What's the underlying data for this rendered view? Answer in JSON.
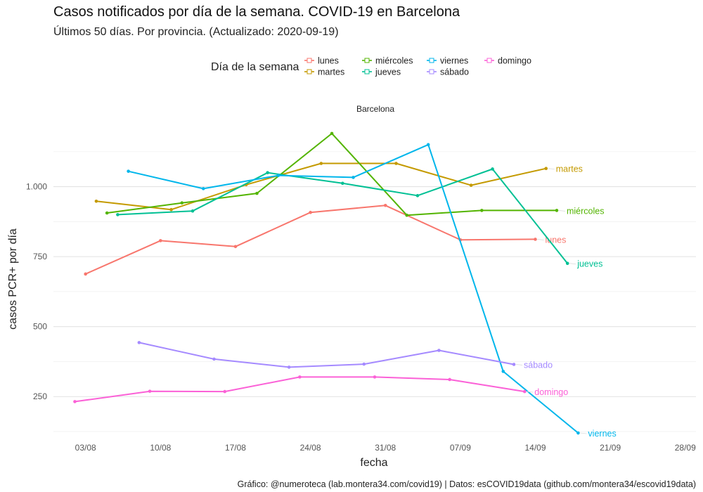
{
  "title": "Casos notificados por día de la semana. COVID-19 en Barcelona",
  "subtitle": "Últimos 50 días. Por provincia. (Actualizado: 2020-09-19)",
  "caption": "Gráfico: @numeroteca (lab.montera34.com/covid19) | Datos: esCOVID19data (github.com/montera34/escovid19data)",
  "chart_data": {
    "type": "line",
    "facet": "Barcelona",
    "xlabel": "fecha",
    "ylabel": "casos PCR+ por día",
    "legend_title": "Día de la semana",
    "legend_position": "top",
    "grid": true,
    "xlim": [
      "2020-07-31",
      "2020-09-29"
    ],
    "ylim": [
      110,
      1240
    ],
    "x_ticks": [
      {
        "date": "2020-08-03",
        "label": "03/08"
      },
      {
        "date": "2020-08-10",
        "label": "10/08"
      },
      {
        "date": "2020-08-17",
        "label": "17/08"
      },
      {
        "date": "2020-08-24",
        "label": "24/08"
      },
      {
        "date": "2020-08-31",
        "label": "31/08"
      },
      {
        "date": "2020-09-07",
        "label": "07/09"
      },
      {
        "date": "2020-09-14",
        "label": "14/09"
      },
      {
        "date": "2020-09-21",
        "label": "21/09"
      },
      {
        "date": "2020-09-28",
        "label": "28/09"
      }
    ],
    "y_ticks": [
      {
        "value": 250,
        "label": "250"
      },
      {
        "value": 500,
        "label": "500"
      },
      {
        "value": 750,
        "label": "750"
      },
      {
        "value": 1000,
        "label": "1.000"
      }
    ],
    "series": [
      {
        "name": "lunes",
        "color": "#F8766D",
        "dates": [
          "2020-08-03",
          "2020-08-10",
          "2020-08-17",
          "2020-08-24",
          "2020-08-31",
          "2020-09-07",
          "2020-09-14"
        ],
        "values": [
          688,
          807,
          786,
          908,
          933,
          810,
          812
        ]
      },
      {
        "name": "martes",
        "color": "#C49A00",
        "dates": [
          "2020-08-04",
          "2020-08-11",
          "2020-08-18",
          "2020-08-25",
          "2020-09-01",
          "2020-09-08",
          "2020-09-15"
        ],
        "values": [
          948,
          918,
          1007,
          1083,
          1083,
          1005,
          1065
        ]
      },
      {
        "name": "miércoles",
        "color": "#53B400",
        "dates": [
          "2020-08-05",
          "2020-08-12",
          "2020-08-19",
          "2020-08-26",
          "2020-09-02",
          "2020-09-09",
          "2020-09-16"
        ],
        "values": [
          906,
          942,
          976,
          1190,
          898,
          915,
          915
        ]
      },
      {
        "name": "jueves",
        "color": "#00C094",
        "dates": [
          "2020-08-06",
          "2020-08-13",
          "2020-08-20",
          "2020-08-27",
          "2020-09-03",
          "2020-09-10",
          "2020-09-17"
        ],
        "values": [
          900,
          913,
          1050,
          1012,
          968,
          1063,
          726
        ]
      },
      {
        "name": "viernes",
        "color": "#00B6EB",
        "dates": [
          "2020-08-07",
          "2020-08-14",
          "2020-08-21",
          "2020-08-28",
          "2020-09-04",
          "2020-09-11",
          "2020-09-18"
        ],
        "values": [
          1055,
          993,
          1040,
          1033,
          1150,
          340,
          120
        ]
      },
      {
        "name": "sábado",
        "color": "#A58AFF",
        "dates": [
          "2020-08-08",
          "2020-08-15",
          "2020-08-22",
          "2020-08-29",
          "2020-09-05",
          "2020-09-12"
        ],
        "values": [
          443,
          384,
          355,
          366,
          415,
          365
        ]
      },
      {
        "name": "domingo",
        "color": "#FB61D7",
        "dates": [
          "2020-08-02",
          "2020-08-09",
          "2020-08-16",
          "2020-08-23",
          "2020-08-30",
          "2020-09-06",
          "2020-09-13"
        ],
        "values": [
          232,
          269,
          268,
          320,
          320,
          311,
          268
        ]
      }
    ]
  }
}
